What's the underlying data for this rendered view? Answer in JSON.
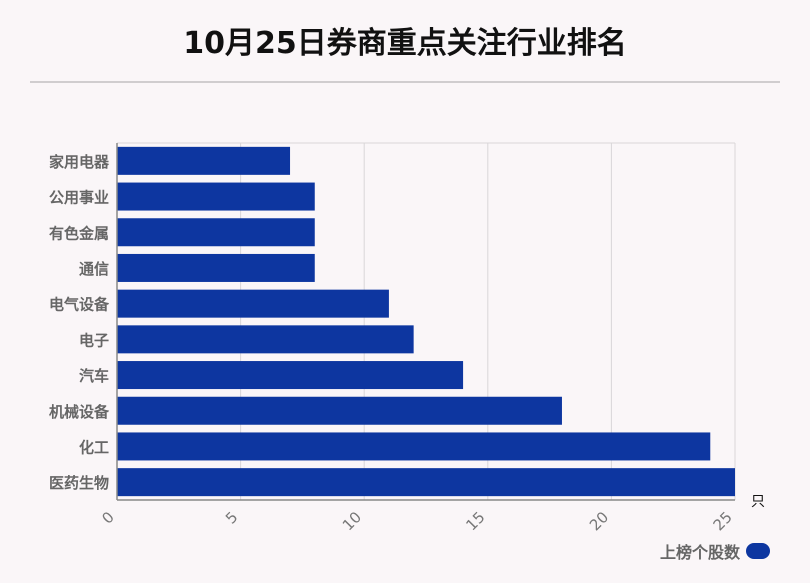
{
  "title": "10月25日券商重点关注行业排名",
  "legend": {
    "label": "上榜个股数"
  },
  "colors": {
    "bar": "#0d36a0",
    "grid": "#d9d6d8",
    "axis": "#888888"
  },
  "chart_data": {
    "type": "bar",
    "orientation": "horizontal",
    "title": "10月25日券商重点关注行业排名",
    "categories": [
      "家用电器",
      "公用事业",
      "有色金属",
      "通信",
      "电气设备",
      "电子",
      "汽车",
      "机械设备",
      "化工",
      "医药生物"
    ],
    "series": [
      {
        "name": "上榜个股数",
        "values": [
          7,
          8,
          8,
          8,
          11,
          12,
          14,
          18,
          24,
          25
        ]
      }
    ],
    "xlim": [
      0,
      25
    ],
    "xticks": [
      0,
      5,
      10,
      15,
      20,
      25
    ],
    "xunit": "只",
    "grid": true,
    "legend_position": "bottom-right"
  }
}
